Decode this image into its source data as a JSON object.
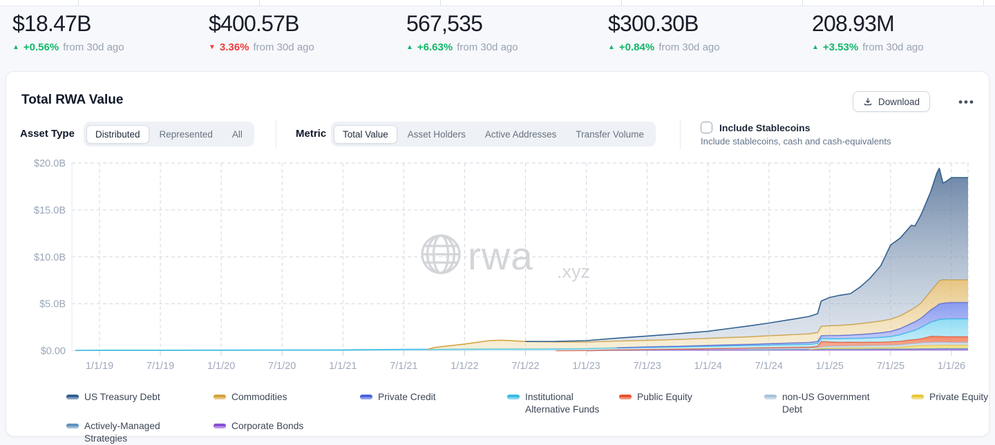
{
  "colors": {
    "positive": "#12b76a",
    "negative": "#ef3b3b",
    "grid": "#d2d7df",
    "axis_text": "#9aa5b8",
    "watermark": "#d3d5d9"
  },
  "stats": [
    {
      "value": "$18.47B",
      "direction": "up",
      "delta": "+0.56%",
      "caption": "from 30d ago"
    },
    {
      "value": "$400.57B",
      "direction": "down",
      "delta": "3.36%",
      "caption": "from 30d ago"
    },
    {
      "value": "567,535",
      "direction": "up",
      "delta": "+6.63%",
      "caption": "from 30d ago"
    },
    {
      "value": "$300.30B",
      "direction": "up",
      "delta": "+0.84%",
      "caption": "from 30d ago"
    },
    {
      "value": "208.93M",
      "direction": "up",
      "delta": "+3.53%",
      "caption": "from 30d ago"
    }
  ],
  "card": {
    "title": "Total RWA Value",
    "download_label": "Download",
    "menu_label": "•••",
    "asset_type": {
      "label": "Asset Type",
      "options": [
        "Distributed",
        "Represented",
        "All"
      ],
      "selected": "Distributed"
    },
    "metric": {
      "label": "Metric",
      "options": [
        "Total Value",
        "Asset Holders",
        "Active Addresses",
        "Transfer Volume"
      ],
      "selected": "Total Value"
    },
    "stablecoins": {
      "label": "Include Stablecoins",
      "description": "Include stablecoins, cash and cash-equivalents",
      "checked": false
    }
  },
  "watermark": {
    "text": "rwa",
    "suffix": ".xyz"
  },
  "chart_data": {
    "type": "area",
    "stacked": true,
    "title": "Total RWA Value",
    "ylim": [
      0,
      20
    ],
    "grid": "dashed",
    "legend_position": "bottom",
    "yticks": [
      {
        "v": 0,
        "label": "$0.00"
      },
      {
        "v": 5,
        "label": "$5.0B"
      },
      {
        "v": 10,
        "label": "$10.0B"
      },
      {
        "v": 15,
        "label": "$15.0B"
      },
      {
        "v": 20,
        "label": "$20.0B"
      }
    ],
    "xticks": [
      {
        "t": 2019.0,
        "label": "1/1/19"
      },
      {
        "t": 2019.5,
        "label": "7/1/19"
      },
      {
        "t": 2020.0,
        "label": "1/1/20"
      },
      {
        "t": 2020.5,
        "label": "7/1/20"
      },
      {
        "t": 2021.0,
        "label": "1/1/21"
      },
      {
        "t": 2021.5,
        "label": "7/1/21"
      },
      {
        "t": 2022.0,
        "label": "1/1/22"
      },
      {
        "t": 2022.5,
        "label": "7/1/22"
      },
      {
        "t": 2023.0,
        "label": "1/1/23"
      },
      {
        "t": 2023.5,
        "label": "7/1/23"
      },
      {
        "t": 2024.0,
        "label": "1/1/24"
      },
      {
        "t": 2024.5,
        "label": "7/1/24"
      },
      {
        "t": 2025.0,
        "label": "1/1/25"
      },
      {
        "t": 2025.5,
        "label": "7/1/25"
      },
      {
        "t": 2026.0,
        "label": "1/1/26"
      }
    ],
    "x_years": [
      2018.8,
      2019.0,
      2019.5,
      2020.0,
      2020.5,
      2021.0,
      2021.3,
      2021.5,
      2021.7,
      2021.75,
      2022.0,
      2022.2,
      2022.3,
      2022.5,
      2022.75,
      2023.0,
      2023.25,
      2023.5,
      2023.75,
      2024.0,
      2024.17,
      2024.33,
      2024.5,
      2024.67,
      2024.83,
      2024.9,
      2024.93,
      2025.0,
      2025.08,
      2025.17,
      2025.25,
      2025.33,
      2025.42,
      2025.5,
      2025.58,
      2025.67,
      2025.7,
      2025.75,
      2025.83,
      2025.88,
      2025.9,
      2025.93,
      2025.96,
      2026.0
    ],
    "unit": "USD billions",
    "series": [
      {
        "name": "US Treasury Debt",
        "color": "#31608f",
        "fill_top": "rgba(72,104,144,0.82)",
        "fill_bottom": "rgba(186,200,217,0.45)",
        "values": [
          0,
          0,
          0,
          0,
          0,
          0,
          0,
          0,
          0,
          0,
          0,
          0,
          0,
          0,
          0.05,
          0.15,
          0.3,
          0.45,
          0.6,
          0.75,
          0.95,
          1.15,
          1.35,
          1.6,
          1.85,
          2.0,
          2.7,
          3.0,
          3.2,
          3.3,
          3.9,
          4.7,
          5.9,
          7.9,
          8.3,
          9.0,
          8.7,
          9.4,
          10.6,
          11.8,
          12.0,
          10.3,
          10.5,
          10.9
        ]
      },
      {
        "name": "Commodities",
        "color": "#d6a33d",
        "fill_top": "rgba(226,183,100,0.8)",
        "fill_bottom": "rgba(240,224,180,0.5)",
        "values": [
          0,
          0,
          0,
          0,
          0,
          0,
          0,
          0,
          0,
          0.2,
          0.55,
          0.9,
          0.95,
          0.8,
          0.75,
          0.7,
          0.72,
          0.7,
          0.72,
          0.75,
          0.78,
          0.8,
          0.85,
          0.88,
          0.92,
          0.95,
          1.0,
          1.05,
          1.07,
          1.1,
          1.15,
          1.2,
          1.25,
          1.3,
          1.35,
          1.45,
          1.5,
          1.6,
          2.0,
          2.35,
          2.45,
          2.5,
          2.45,
          2.4
        ]
      },
      {
        "name": "Private Credit",
        "color": "#4a63de",
        "fill_top": "rgba(118,138,238,0.85)",
        "fill_bottom": "rgba(168,180,244,0.6)",
        "values": [
          0,
          0,
          0,
          0,
          0,
          0,
          0,
          0,
          0,
          0,
          0,
          0,
          0,
          0,
          0,
          0,
          0,
          0.05,
          0.07,
          0.1,
          0.12,
          0.13,
          0.15,
          0.18,
          0.2,
          0.22,
          0.28,
          0.32,
          0.35,
          0.37,
          0.42,
          0.45,
          0.5,
          0.55,
          0.65,
          0.85,
          0.9,
          1.0,
          1.3,
          1.55,
          1.65,
          1.7,
          1.72,
          1.75
        ]
      },
      {
        "name": "Institutional Alternative Funds",
        "color": "#37bce4",
        "fill_top": "rgba(130,216,242,0.9)",
        "fill_bottom": "rgba(178,232,248,0.6)",
        "values": [
          0.04,
          0.05,
          0.05,
          0.06,
          0.07,
          0.08,
          0.12,
          0.13,
          0.14,
          0.14,
          0.16,
          0.17,
          0.17,
          0.18,
          0.19,
          0.2,
          0.21,
          0.22,
          0.23,
          0.24,
          0.25,
          0.26,
          0.27,
          0.28,
          0.29,
          0.3,
          0.33,
          0.36,
          0.38,
          0.4,
          0.42,
          0.45,
          0.5,
          0.55,
          0.7,
          0.9,
          1.0,
          1.2,
          1.5,
          1.7,
          1.8,
          1.85,
          1.88,
          1.9
        ]
      },
      {
        "name": "Public Equity",
        "color": "#e8522d",
        "fill_top": "rgba(240,120,85,0.9)",
        "fill_bottom": "rgba(246,160,130,0.7)",
        "values": [
          0,
          0,
          0,
          0,
          0,
          0,
          0,
          0,
          0,
          0,
          0,
          0,
          0,
          0,
          0,
          0.02,
          0.03,
          0.03,
          0.04,
          0.05,
          0.06,
          0.07,
          0.08,
          0.09,
          0.1,
          0.12,
          0.55,
          0.45,
          0.4,
          0.38,
          0.36,
          0.34,
          0.34,
          0.36,
          0.38,
          0.4,
          0.4,
          0.42,
          0.65,
          0.62,
          0.62,
          0.6,
          0.6,
          0.6
        ]
      },
      {
        "name": "non-US Government Debt",
        "color": "#a9c2da",
        "fill_top": "rgba(198,214,230,0.95)",
        "fill_bottom": "rgba(210,224,238,0.7)",
        "values": [
          0,
          0,
          0,
          0,
          0,
          0,
          0,
          0,
          0,
          0,
          0,
          0,
          0,
          0,
          0,
          0,
          0.02,
          0.04,
          0.06,
          0.08,
          0.1,
          0.11,
          0.12,
          0.13,
          0.14,
          0.15,
          0.17,
          0.2,
          0.21,
          0.22,
          0.23,
          0.24,
          0.24,
          0.25,
          0.26,
          0.28,
          0.28,
          0.3,
          0.32,
          0.33,
          0.33,
          0.32,
          0.31,
          0.3
        ]
      },
      {
        "name": "Private Equity",
        "color": "#e7c73a",
        "fill_top": "rgba(240,220,110,0.95)",
        "fill_bottom": "rgba(244,228,140,0.7)",
        "values": [
          0,
          0,
          0,
          0,
          0,
          0,
          0,
          0,
          0,
          0,
          0,
          0,
          0,
          0,
          0,
          0,
          0,
          0,
          0,
          0,
          0,
          0,
          0,
          0,
          0,
          0.05,
          0.1,
          0.12,
          0.12,
          0.13,
          0.13,
          0.14,
          0.14,
          0.15,
          0.18,
          0.28,
          0.3,
          0.33,
          0.35,
          0.35,
          0.35,
          0.35,
          0.35,
          0.35
        ]
      },
      {
        "name": "Actively-Managed Strategies",
        "color": "#5e93bc",
        "fill_top": "rgba(148,190,216,0.9)",
        "fill_bottom": "rgba(170,205,226,0.7)",
        "values": [
          0,
          0,
          0,
          0,
          0,
          0,
          0,
          0,
          0,
          0,
          0,
          0,
          0,
          0,
          0,
          0,
          0,
          0,
          0,
          0,
          0,
          0,
          0.02,
          0.02,
          0.03,
          0.03,
          0.04,
          0.04,
          0.04,
          0.05,
          0.05,
          0.05,
          0.06,
          0.06,
          0.06,
          0.07,
          0.07,
          0.08,
          0.08,
          0.09,
          0.09,
          0.1,
          0.1,
          0.1
        ]
      },
      {
        "name": "Corporate Bonds",
        "color": "#8b4fd4",
        "fill_top": "rgba(168,120,225,0.9)",
        "fill_bottom": "rgba(190,150,235,0.7)",
        "values": [
          0,
          0,
          0,
          0,
          0,
          0,
          0,
          0,
          0,
          0,
          0,
          0,
          0,
          0,
          0,
          0,
          0.05,
          0.07,
          0.08,
          0.1,
          0.1,
          0.11,
          0.11,
          0.12,
          0.12,
          0.12,
          0.13,
          0.13,
          0.13,
          0.13,
          0.13,
          0.14,
          0.14,
          0.14,
          0.14,
          0.14,
          0.14,
          0.15,
          0.15,
          0.15,
          0.15,
          0.15,
          0.15,
          0.15
        ]
      }
    ],
    "stack_order": "last-series-at-bottom, first-series (US Treasury Debt) on top"
  }
}
